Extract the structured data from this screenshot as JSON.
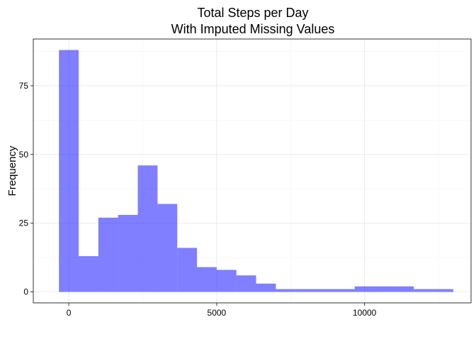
{
  "chart_data": {
    "type": "bar",
    "title_line1": "Total Steps per Day",
    "title_line2": "With Imputed Missing Values",
    "xlabel": "",
    "ylabel": "Frequency",
    "bins": [
      {
        "start": -333,
        "end": 333,
        "count": 88
      },
      {
        "start": 333,
        "end": 1000,
        "count": 13
      },
      {
        "start": 1000,
        "end": 1667,
        "count": 27
      },
      {
        "start": 1667,
        "end": 2333,
        "count": 28
      },
      {
        "start": 2333,
        "end": 3000,
        "count": 46
      },
      {
        "start": 3000,
        "end": 3667,
        "count": 32
      },
      {
        "start": 3667,
        "end": 4333,
        "count": 16
      },
      {
        "start": 4333,
        "end": 5000,
        "count": 9
      },
      {
        "start": 5000,
        "end": 5667,
        "count": 8
      },
      {
        "start": 5667,
        "end": 6333,
        "count": 6
      },
      {
        "start": 6333,
        "end": 7000,
        "count": 3
      },
      {
        "start": 7000,
        "end": 7667,
        "count": 1
      },
      {
        "start": 7667,
        "end": 8333,
        "count": 1
      },
      {
        "start": 8333,
        "end": 9000,
        "count": 1
      },
      {
        "start": 9000,
        "end": 9667,
        "count": 1
      },
      {
        "start": 9667,
        "end": 10333,
        "count": 2
      },
      {
        "start": 10333,
        "end": 11000,
        "count": 2
      },
      {
        "start": 11000,
        "end": 11667,
        "count": 2
      },
      {
        "start": 11667,
        "end": 12333,
        "count": 1
      },
      {
        "start": 12333,
        "end": 13000,
        "count": 1
      }
    ],
    "xlim": [
      -1200,
      13600
    ],
    "ylim": [
      -4,
      92
    ],
    "x_ticks": [
      0,
      5000,
      10000
    ],
    "x_tick_labels": [
      "0",
      "5000",
      "10000"
    ],
    "x_minor_ticks": [
      2500,
      7500,
      12500
    ],
    "y_ticks": [
      0,
      25,
      50,
      75
    ],
    "y_tick_labels": [
      "0",
      "25",
      "50",
      "75"
    ],
    "y_minor_ticks": [
      12.5,
      37.5,
      62.5,
      87.5
    ],
    "grid": true,
    "legend": "none",
    "colors": {
      "bar_fill": "#0000ff",
      "bar_opacity": 0.5,
      "grid_major": "#ebebeb",
      "grid_minor": "#f5f5f5",
      "panel_border": "#333333",
      "background": "#ffffff"
    }
  }
}
